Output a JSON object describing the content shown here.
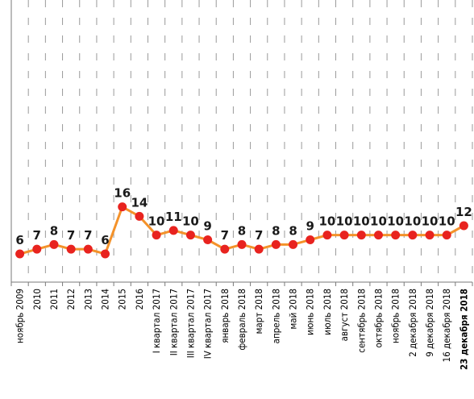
{
  "chart_data": {
    "type": "line",
    "categories": [
      "ноябрь 2009",
      "2010",
      "2011",
      "2012",
      "2013",
      "2014",
      "2015",
      "2016",
      "I квартал 2017",
      "II квартал 2017",
      "III квартал 2017",
      "IV квартал 2017",
      "январь 2018",
      "февраль 2018",
      "март 2018",
      "апрель 2018",
      "май 2018",
      "июнь 2018",
      "июль 2018",
      "август 2018",
      "сентябрь 2018",
      "октябрь 2018",
      "ноябрь 2018",
      "2 декабря 2018",
      "9 декабря 2018",
      "16 декабря 2018",
      "23 декабря 2018"
    ],
    "values": [
      6,
      7,
      8,
      7,
      7,
      6,
      16,
      14,
      10,
      11,
      10,
      9,
      7,
      8,
      7,
      8,
      8,
      9,
      10,
      10,
      10,
      10,
      10,
      10,
      10,
      10,
      12
    ],
    "bold_last_label": true,
    "ylim": [
      0,
      60
    ],
    "grid": "vertical dashed",
    "colors": {
      "line": "#F4922A",
      "marker": "#E8231F",
      "grid": "#9a9a9a",
      "axis": "#7a7a7a"
    }
  }
}
